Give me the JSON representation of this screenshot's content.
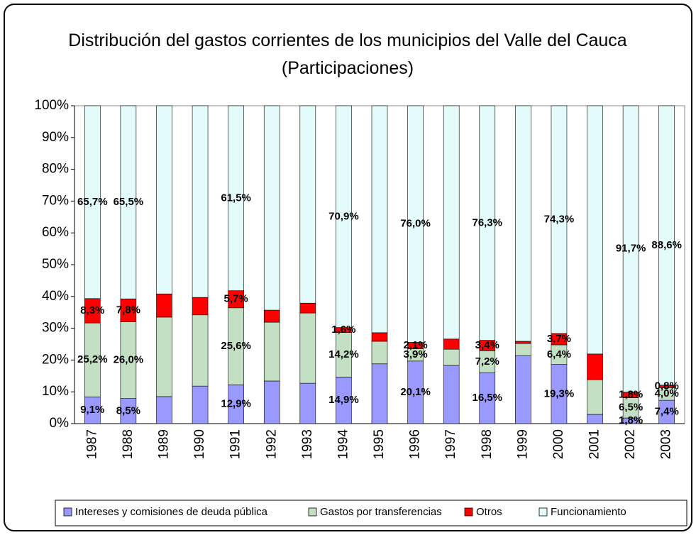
{
  "chart_data": {
    "type": "bar",
    "stacked_percent": true,
    "title": "Distribución del gastos corrientes de los municipios del Valle del Cauca (Participaciones)",
    "categories": [
      "1987",
      "1988",
      "1989",
      "1990",
      "1991",
      "1992",
      "1993",
      "1994",
      "1995",
      "1996",
      "1997",
      "1998",
      "1999",
      "2000",
      "2001",
      "2002",
      "2003"
    ],
    "ylim": [
      0,
      100
    ],
    "yticks": [
      {
        "value": 0,
        "label": "0%"
      },
      {
        "value": 10,
        "label": "10%"
      },
      {
        "value": 20,
        "label": "20%"
      },
      {
        "value": 30,
        "label": "30%"
      },
      {
        "value": 40,
        "label": "40%"
      },
      {
        "value": 50,
        "label": "50%"
      },
      {
        "value": 60,
        "label": "60%"
      },
      {
        "value": 70,
        "label": "70%"
      },
      {
        "value": 80,
        "label": "80%"
      },
      {
        "value": 90,
        "label": "90%"
      },
      {
        "value": 100,
        "label": "100%"
      }
    ],
    "series": [
      {
        "name": "Intereses y comisiones de deuda pública",
        "color": "#9999ff",
        "values": [
          9.1,
          8.5,
          8.5,
          11.8,
          12.9,
          13.4,
          12.7,
          14.9,
          18.8,
          20.1,
          18.3,
          16.5,
          21.4,
          19.3,
          2.9,
          1.8,
          7.4
        ],
        "value_labels": [
          "9,1%",
          "8,5%",
          null,
          null,
          "12,9%",
          null,
          null,
          "14,9%",
          null,
          "20,1%",
          null,
          "16,5%",
          null,
          "19,3%",
          null,
          "1,8%",
          "7,4%"
        ]
      },
      {
        "name": "Gastos por transferencias",
        "color": "#c4e0c4",
        "values": [
          25.2,
          26.0,
          25.0,
          22.4,
          25.6,
          18.5,
          22.1,
          14.2,
          7.1,
          3.9,
          5.1,
          7.2,
          3.8,
          6.4,
          10.9,
          6.5,
          4.0
        ],
        "value_labels": [
          "25,2%",
          "26,0%",
          null,
          null,
          "25,6%",
          null,
          null,
          "14,2%",
          null,
          "3,9%",
          null,
          "7,2%",
          null,
          "6,4%",
          null,
          "6,5%",
          "4,0%"
        ]
      },
      {
        "name": "Otros",
        "color": "#ff0000",
        "values": [
          8.3,
          7.8,
          7.3,
          5.5,
          5.7,
          3.8,
          3.1,
          1.6,
          2.7,
          2.1,
          3.2,
          3.4,
          0.7,
          3.7,
          8.1,
          1.8,
          0.8
        ],
        "value_labels": [
          "8,3%",
          "7,8%",
          null,
          null,
          "5,7%",
          null,
          null,
          "1,6%",
          null,
          "2,1%",
          null,
          "3,4%",
          null,
          "3,7%",
          null,
          "1,8%",
          "0,8%"
        ]
      },
      {
        "name": "Funcionamiento",
        "color": "#e4fbfb",
        "values": [
          65.7,
          65.5,
          59.2,
          60.3,
          61.5,
          64.3,
          62.1,
          70.9,
          71.4,
          76.0,
          73.4,
          76.3,
          74.1,
          74.3,
          78.1,
          91.7,
          88.6
        ],
        "value_labels": [
          "65,7%",
          "65,5%",
          null,
          null,
          "61,5%",
          null,
          null,
          "70,9%",
          null,
          "76,0%",
          null,
          "76,3%",
          null,
          "74,3%",
          null,
          "91,7%",
          "88,6%"
        ]
      }
    ]
  }
}
